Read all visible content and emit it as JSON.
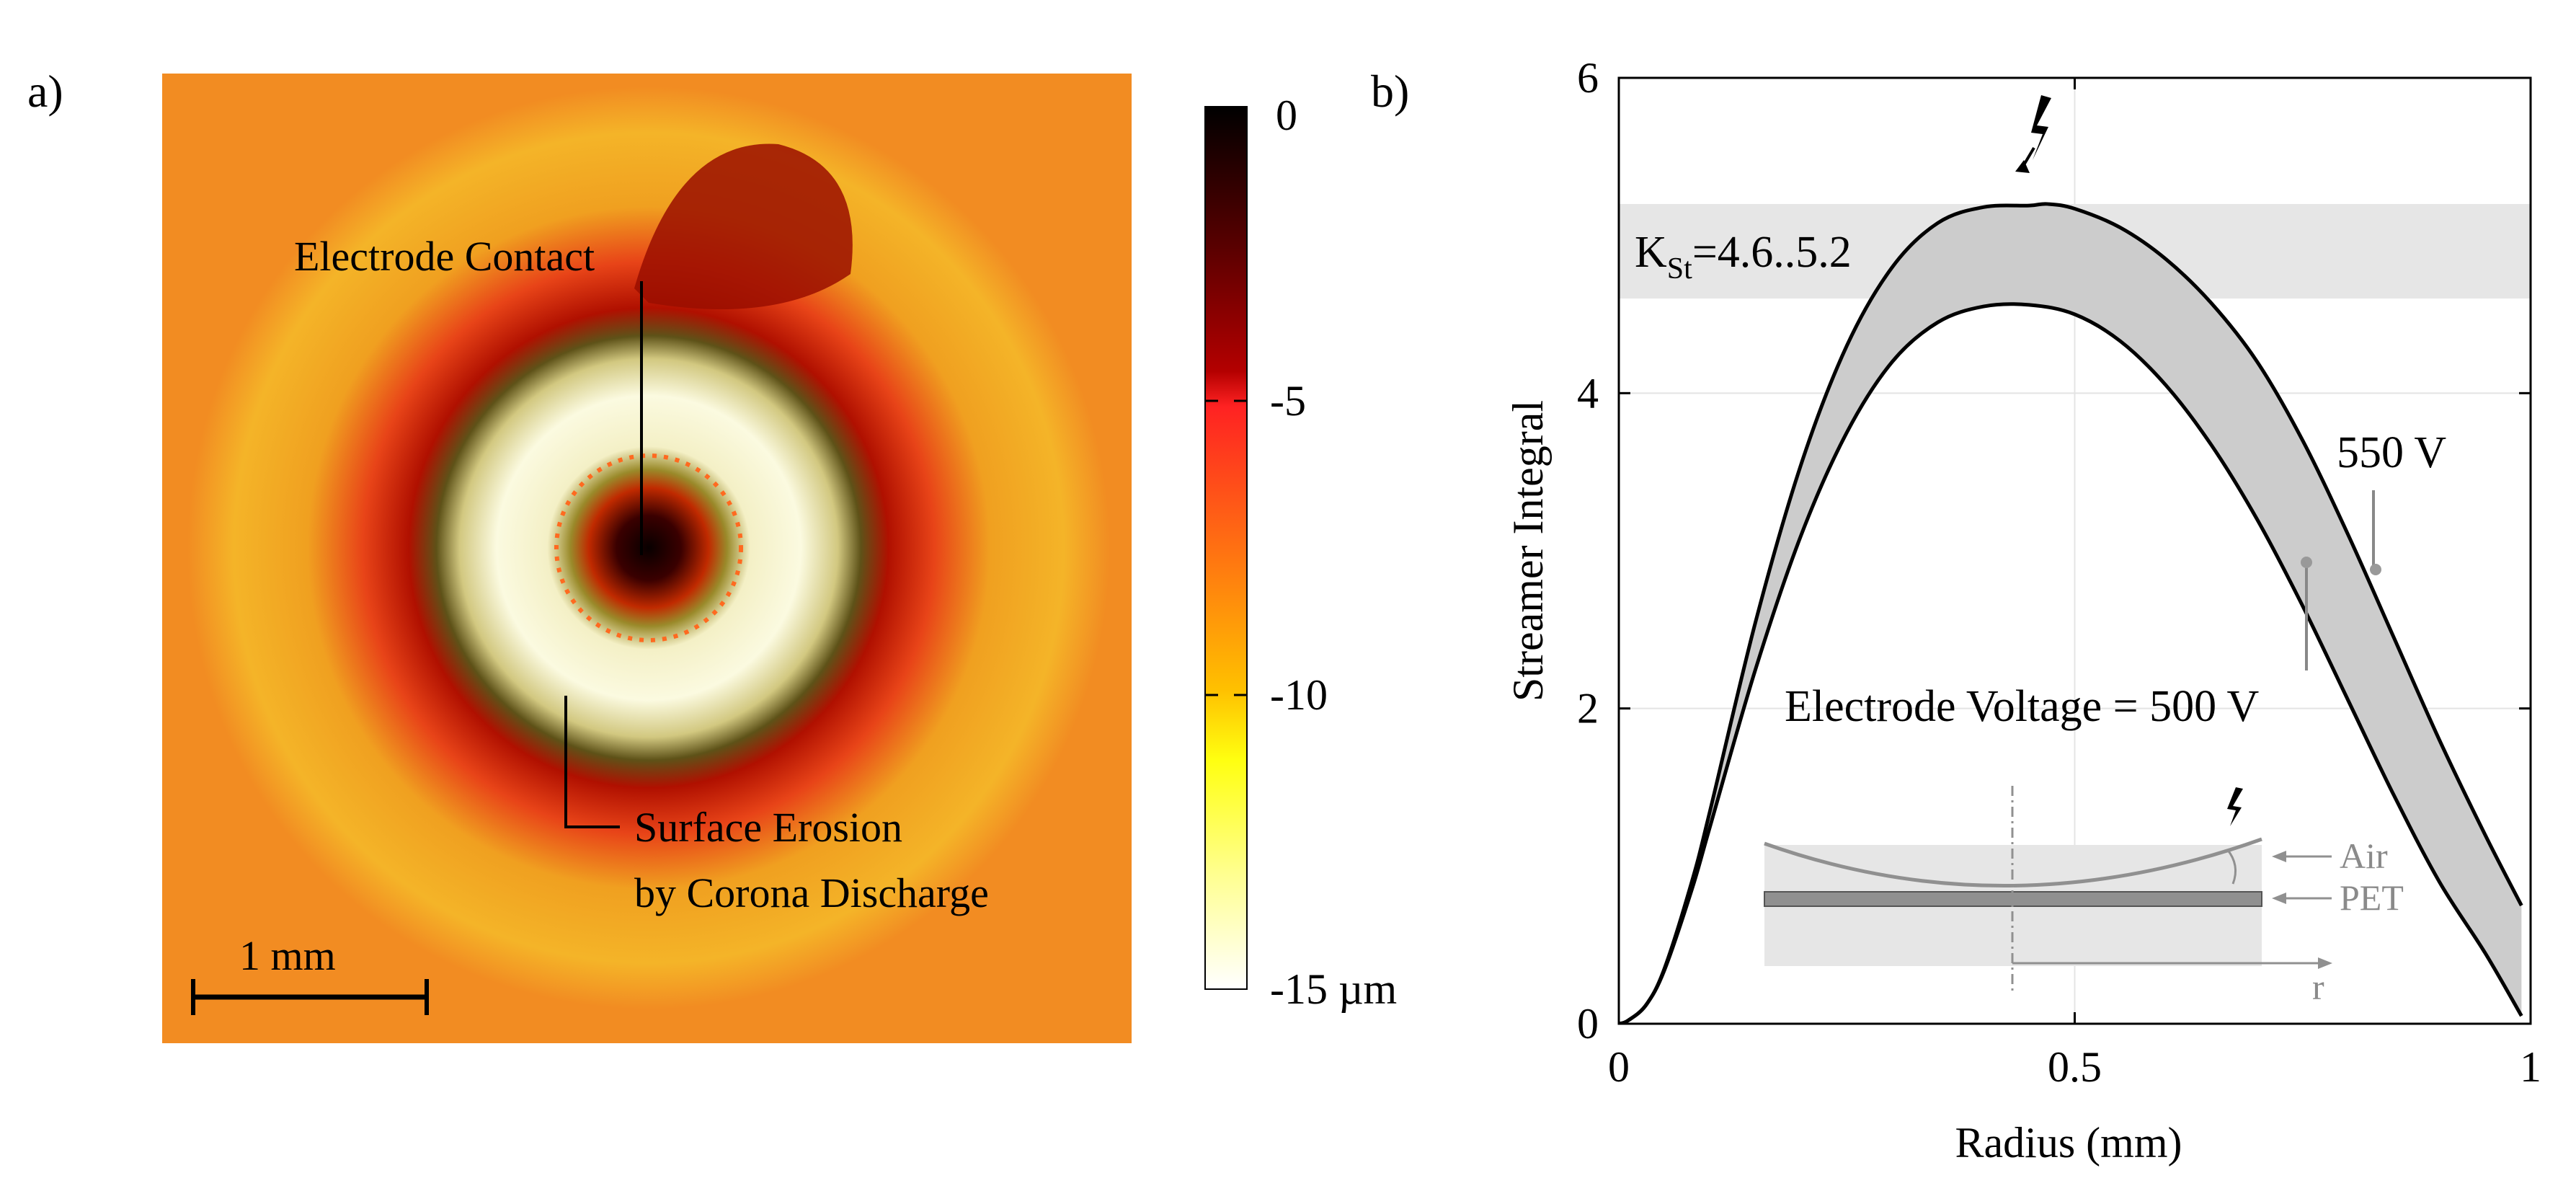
{
  "panel_a": {
    "label": "a)",
    "annotations": {
      "electrode_contact": "Electrode Contact",
      "erosion_line1": "Surface Erosion",
      "erosion_line2": "by Corona Discharge"
    },
    "scale_bar": "1 mm",
    "colorbar": {
      "ticks": [
        "0",
        "-5",
        "-10",
        "-15 µm"
      ],
      "values": [
        0,
        -5,
        -10,
        -15
      ],
      "colors": [
        "#000000",
        "#5a0000",
        "#b40000",
        "#ff2222",
        "#ff7a10",
        "#ffc000",
        "#ffff10",
        "#ffff90",
        "#ffffff"
      ]
    }
  },
  "panel_b": {
    "label": "b)",
    "kst_label_main": "K",
    "kst_label_sub": "St",
    "kst_label_rest": "=4.6..5.2",
    "label_550": "550 V",
    "label_500": "Electrode Voltage = 500 V",
    "inset": {
      "air": "Air",
      "pet": "PET",
      "r": "r"
    }
  },
  "chart_data": {
    "type": "line",
    "xlabel": "Radius (mm)",
    "ylabel": "Streamer Integral",
    "xlim": [
      0,
      1
    ],
    "ylim": [
      0,
      6
    ],
    "xticks": [
      0,
      0.5,
      1
    ],
    "xtick_labels": [
      "0",
      "0.5",
      "1"
    ],
    "yticks": [
      0,
      2,
      4,
      6
    ],
    "ytick_labels": [
      "0",
      "2",
      "4",
      "6"
    ],
    "grid": true,
    "band": {
      "y": [
        4.6,
        5.2
      ],
      "color": "#e6e6e6"
    },
    "fill_between_series": {
      "color": "#cccccc"
    },
    "series": [
      {
        "name": "550 V",
        "x": [
          0,
          0.01,
          0.03,
          0.05,
          0.08,
          0.1,
          0.15,
          0.2,
          0.25,
          0.3,
          0.35,
          0.4,
          0.45,
          0.47,
          0.5,
          0.55,
          0.6,
          0.65,
          0.7,
          0.75,
          0.8,
          0.85,
          0.9,
          0.95,
          0.99
        ],
        "y": [
          0,
          0.02,
          0.12,
          0.35,
          0.9,
          1.35,
          2.55,
          3.55,
          4.3,
          4.8,
          5.08,
          5.18,
          5.19,
          5.2,
          5.17,
          5.05,
          4.85,
          4.57,
          4.2,
          3.7,
          3.1,
          2.45,
          1.8,
          1.2,
          0.75
        ]
      },
      {
        "name": "Electrode Voltage = 500 V",
        "x": [
          0,
          0.01,
          0.03,
          0.05,
          0.08,
          0.1,
          0.15,
          0.2,
          0.25,
          0.3,
          0.35,
          0.4,
          0.45,
          0.5,
          0.55,
          0.6,
          0.65,
          0.7,
          0.75,
          0.8,
          0.85,
          0.9,
          0.95,
          0.99
        ],
        "y": [
          0,
          0.02,
          0.12,
          0.34,
          0.85,
          1.25,
          2.25,
          3.1,
          3.75,
          4.2,
          4.45,
          4.55,
          4.56,
          4.5,
          4.33,
          4.05,
          3.67,
          3.2,
          2.65,
          2.05,
          1.45,
          0.9,
          0.45,
          0.05
        ]
      }
    ]
  }
}
